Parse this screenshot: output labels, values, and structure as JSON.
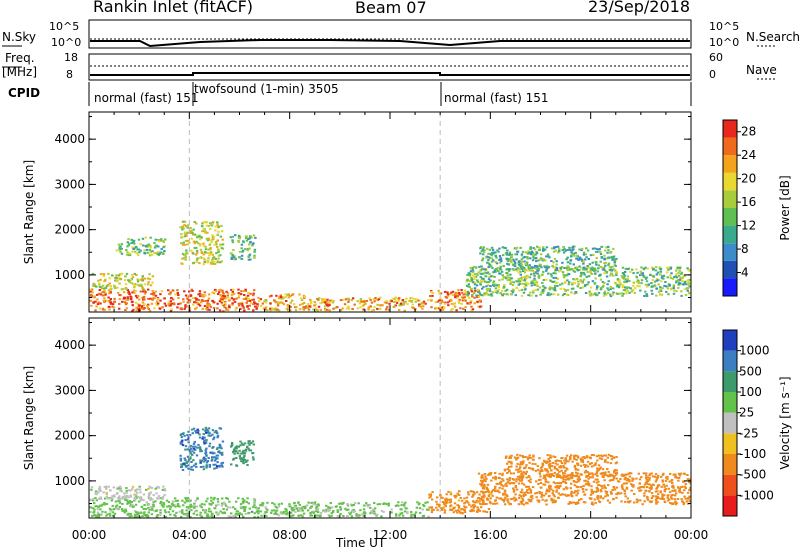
{
  "header": {
    "station": "Rankin Inlet (fitACF)",
    "beam": "Beam 07",
    "date": "23/Sep/2018"
  },
  "top_strips": {
    "nsky_label": "N.Sky",
    "nsky_ticks": [
      "10^5",
      "10^0"
    ],
    "nsearch_label": "N.Search",
    "nsearch_ticks": [
      "10^5",
      "10^0"
    ],
    "freq_label_1": "Freq.",
    "freq_label_2": "[MHz]",
    "freq_ticks": [
      "18",
      "8"
    ],
    "nave_label": "Nave",
    "nave_ticks": [
      "60",
      "0"
    ],
    "cpid_label": "CPID",
    "modes": [
      {
        "text": "normal (fast) 151",
        "start_hour": 0
      },
      {
        "text": "twofsound (1-min) 3505",
        "start_hour": 4.0
      },
      {
        "text": "normal (fast) 151",
        "start_hour": 14.0
      }
    ],
    "mode_start_marks": [
      "151",
      "151"
    ]
  },
  "chart_data": [
    {
      "type": "heatmap",
      "title": "",
      "xlabel": "",
      "ylabel": "Slant Range [km]",
      "xlim_hours": [
        0,
        24
      ],
      "ylim_km": [
        180,
        4600
      ],
      "x_ticks": [
        "00:00",
        "04:00",
        "08:00",
        "12:00",
        "16:00",
        "20:00",
        "00:00"
      ],
      "y_ticks": [
        1000,
        2000,
        3000,
        4000
      ],
      "colorbar": {
        "label": "Power [dB]",
        "ticks": [
          4,
          8,
          12,
          16,
          20,
          24,
          28
        ],
        "colors": [
          "#1a1aff",
          "#2150b4",
          "#3b8cc8",
          "#3aaa8c",
          "#5fbf52",
          "#a8cc3a",
          "#e8d830",
          "#f4a31c",
          "#ef6a1b",
          "#e8281c"
        ]
      },
      "echo_regions": [
        {
          "t0": 0.0,
          "t1": 6.7,
          "r0": 220,
          "r1": 700,
          "value": 26
        },
        {
          "t0": 0.1,
          "t1": 2.5,
          "r0": 700,
          "r1": 1050,
          "value": 18
        },
        {
          "t0": 3.6,
          "t1": 5.3,
          "r0": 1250,
          "r1": 2200,
          "value": 18
        },
        {
          "t0": 5.6,
          "t1": 6.6,
          "r0": 1350,
          "r1": 1900,
          "value": 12
        },
        {
          "t0": 1.0,
          "t1": 3.0,
          "r0": 1450,
          "r1": 1850,
          "value": 14
        },
        {
          "t0": 6.7,
          "t1": 8.6,
          "r0": 230,
          "r1": 600,
          "value": 22
        },
        {
          "t0": 8.6,
          "t1": 13.5,
          "r0": 230,
          "r1": 520,
          "value": 22
        },
        {
          "t0": 13.5,
          "t1": 15.6,
          "r0": 240,
          "r1": 700,
          "value": 24
        },
        {
          "t0": 15.0,
          "t1": 24.0,
          "r0": 550,
          "r1": 1200,
          "value": 14
        },
        {
          "t0": 15.5,
          "t1": 21.0,
          "r0": 1100,
          "r1": 1650,
          "value": 12
        }
      ]
    },
    {
      "type": "heatmap",
      "title": "",
      "xlabel": "Time UT",
      "ylabel": "Slant Range [km]",
      "xlim_hours": [
        0,
        24
      ],
      "ylim_km": [
        180,
        4600
      ],
      "x_ticks": [
        "00:00",
        "04:00",
        "08:00",
        "12:00",
        "16:00",
        "20:00",
        "00:00"
      ],
      "y_ticks": [
        1000,
        2000,
        3000,
        4000
      ],
      "colorbar": {
        "label": "Velocity [m s⁻¹]",
        "ticks": [
          "1000",
          "500",
          "100",
          "25",
          "-25",
          "-100",
          "-500",
          "-1000"
        ],
        "colors": [
          "#1f3fbf",
          "#3b7fc3",
          "#3d9a6a",
          "#62c24a",
          "#c0c0c0",
          "#f0c020",
          "#f08a1c",
          "#ef4f1b",
          "#e81c1c"
        ]
      },
      "echo_regions": [
        {
          "t0": 0.0,
          "t1": 6.7,
          "r0": 220,
          "r1": 650,
          "value": 50
        },
        {
          "t0": 0.0,
          "t1": 3.0,
          "r0": 600,
          "r1": 900,
          "value": 0
        },
        {
          "t0": 3.6,
          "t1": 5.3,
          "r0": 1250,
          "r1": 2200,
          "value": 700
        },
        {
          "t0": 5.6,
          "t1": 6.6,
          "r0": 1350,
          "r1": 1900,
          "value": 300
        },
        {
          "t0": 6.7,
          "t1": 13.5,
          "r0": 230,
          "r1": 550,
          "value": 40
        },
        {
          "t0": 13.5,
          "t1": 16.0,
          "r0": 300,
          "r1": 800,
          "value": -200
        },
        {
          "t0": 15.5,
          "t1": 24.0,
          "r0": 500,
          "r1": 1200,
          "value": -300
        },
        {
          "t0": 16.5,
          "t1": 21.0,
          "r0": 1100,
          "r1": 1600,
          "value": -300
        }
      ]
    }
  ]
}
